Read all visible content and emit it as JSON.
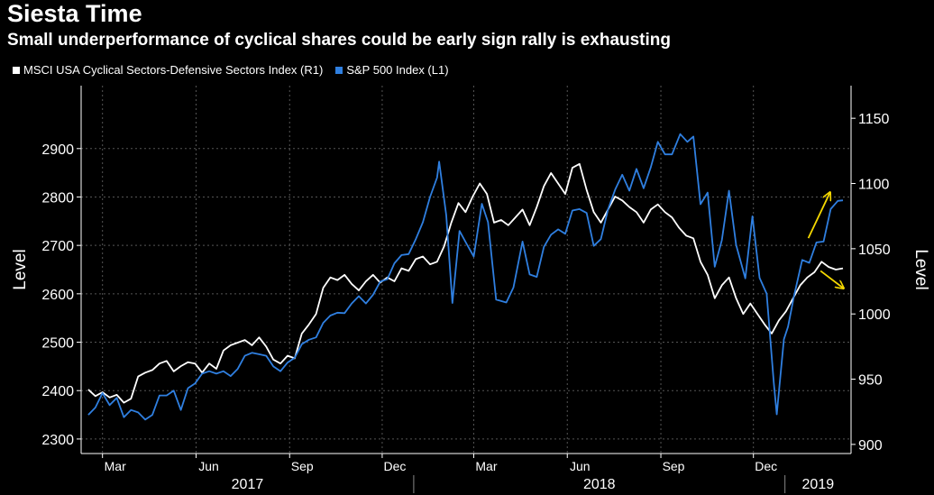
{
  "header": {
    "title": "Siesta Time",
    "subtitle": "Small underperformance of cyclical shares could be early sign rally is exhausting"
  },
  "colors": {
    "background": "#000000",
    "sp500": "#2f7fe0",
    "cyclical": "#ffffff",
    "arrow": "#f5d800",
    "grid": "#555555"
  },
  "chart_data": {
    "type": "line",
    "grid": true,
    "legend_placement": "top-left",
    "series": [
      {
        "name": "MSCI USA Cyclical Sectors-Defensive Sectors Index (R1)",
        "axis": "right",
        "color": "#ffffff",
        "points": [
          [
            "2017-02-15",
            942
          ],
          [
            "2017-02-22",
            937
          ],
          [
            "2017-03-01",
            940
          ],
          [
            "2017-03-08",
            936
          ],
          [
            "2017-03-15",
            938
          ],
          [
            "2017-03-22",
            932
          ],
          [
            "2017-03-29",
            935
          ],
          [
            "2017-04-05",
            952
          ],
          [
            "2017-04-12",
            955
          ],
          [
            "2017-04-19",
            957
          ],
          [
            "2017-04-26",
            962
          ],
          [
            "2017-05-03",
            964
          ],
          [
            "2017-05-10",
            956
          ],
          [
            "2017-05-17",
            960
          ],
          [
            "2017-05-24",
            963
          ],
          [
            "2017-05-31",
            962
          ],
          [
            "2017-06-07",
            955
          ],
          [
            "2017-06-14",
            962
          ],
          [
            "2017-06-21",
            958
          ],
          [
            "2017-06-28",
            972
          ],
          [
            "2017-07-05",
            976
          ],
          [
            "2017-07-12",
            978
          ],
          [
            "2017-07-19",
            980
          ],
          [
            "2017-07-26",
            976
          ],
          [
            "2017-08-02",
            982
          ],
          [
            "2017-08-09",
            975
          ],
          [
            "2017-08-16",
            965
          ],
          [
            "2017-08-23",
            962
          ],
          [
            "2017-08-30",
            968
          ],
          [
            "2017-09-06",
            966
          ],
          [
            "2017-09-13",
            985
          ],
          [
            "2017-09-20",
            992
          ],
          [
            "2017-09-27",
            1000
          ],
          [
            "2017-10-04",
            1020
          ],
          [
            "2017-10-11",
            1028
          ],
          [
            "2017-10-18",
            1026
          ],
          [
            "2017-10-25",
            1030
          ],
          [
            "2017-11-01",
            1023
          ],
          [
            "2017-11-08",
            1018
          ],
          [
            "2017-11-15",
            1025
          ],
          [
            "2017-11-22",
            1030
          ],
          [
            "2017-11-29",
            1024
          ],
          [
            "2017-12-06",
            1028
          ],
          [
            "2017-12-13",
            1025
          ],
          [
            "2017-12-20",
            1035
          ],
          [
            "2017-12-27",
            1033
          ],
          [
            "2018-01-03",
            1042
          ],
          [
            "2018-01-10",
            1044
          ],
          [
            "2018-01-17",
            1038
          ],
          [
            "2018-01-24",
            1040
          ],
          [
            "2018-01-31",
            1052
          ],
          [
            "2018-02-07",
            1070
          ],
          [
            "2018-02-14",
            1085
          ],
          [
            "2018-02-21",
            1078
          ],
          [
            "2018-02-28",
            1090
          ],
          [
            "2018-03-07",
            1100
          ],
          [
            "2018-03-14",
            1092
          ],
          [
            "2018-03-21",
            1070
          ],
          [
            "2018-03-28",
            1072
          ],
          [
            "2018-04-04",
            1068
          ],
          [
            "2018-04-11",
            1074
          ],
          [
            "2018-04-18",
            1080
          ],
          [
            "2018-04-25",
            1068
          ],
          [
            "2018-05-02",
            1082
          ],
          [
            "2018-05-09",
            1098
          ],
          [
            "2018-05-16",
            1108
          ],
          [
            "2018-05-23",
            1100
          ],
          [
            "2018-05-30",
            1092
          ],
          [
            "2018-06-06",
            1112
          ],
          [
            "2018-06-13",
            1115
          ],
          [
            "2018-06-20",
            1095
          ],
          [
            "2018-06-27",
            1078
          ],
          [
            "2018-07-04",
            1070
          ],
          [
            "2018-07-11",
            1080
          ],
          [
            "2018-07-18",
            1090
          ],
          [
            "2018-07-25",
            1087
          ],
          [
            "2018-08-01",
            1082
          ],
          [
            "2018-08-08",
            1078
          ],
          [
            "2018-08-15",
            1070
          ],
          [
            "2018-08-22",
            1080
          ],
          [
            "2018-08-29",
            1084
          ],
          [
            "2018-09-05",
            1078
          ],
          [
            "2018-09-12",
            1074
          ],
          [
            "2018-09-19",
            1066
          ],
          [
            "2018-09-26",
            1060
          ],
          [
            "2018-10-03",
            1058
          ],
          [
            "2018-10-10",
            1040
          ],
          [
            "2018-10-17",
            1030
          ],
          [
            "2018-10-24",
            1012
          ],
          [
            "2018-10-31",
            1022
          ],
          [
            "2018-11-07",
            1028
          ],
          [
            "2018-11-14",
            1012
          ],
          [
            "2018-11-21",
            1000
          ],
          [
            "2018-11-28",
            1008
          ],
          [
            "2018-12-05",
            1000
          ],
          [
            "2018-12-12",
            992
          ],
          [
            "2018-12-19",
            985
          ],
          [
            "2018-12-26",
            995
          ],
          [
            "2019-01-02",
            1002
          ],
          [
            "2019-01-09",
            1012
          ],
          [
            "2019-01-16",
            1022
          ],
          [
            "2019-01-23",
            1028
          ],
          [
            "2019-01-30",
            1032
          ],
          [
            "2019-02-06",
            1040
          ],
          [
            "2019-02-13",
            1036
          ],
          [
            "2019-02-20",
            1034
          ],
          [
            "2019-02-27",
            1035
          ]
        ]
      },
      {
        "name": "S&P 500 Index (L1)",
        "axis": "left",
        "color": "#2f7fe0",
        "points": [
          [
            "2017-02-15",
            2350
          ],
          [
            "2017-02-22",
            2365
          ],
          [
            "2017-03-01",
            2395
          ],
          [
            "2017-03-08",
            2370
          ],
          [
            "2017-03-15",
            2385
          ],
          [
            "2017-03-22",
            2345
          ],
          [
            "2017-03-29",
            2360
          ],
          [
            "2017-04-05",
            2355
          ],
          [
            "2017-04-12",
            2340
          ],
          [
            "2017-04-19",
            2350
          ],
          [
            "2017-04-26",
            2390
          ],
          [
            "2017-05-03",
            2390
          ],
          [
            "2017-05-10",
            2400
          ],
          [
            "2017-05-17",
            2360
          ],
          [
            "2017-05-24",
            2405
          ],
          [
            "2017-05-31",
            2415
          ],
          [
            "2017-06-07",
            2435
          ],
          [
            "2017-06-14",
            2440
          ],
          [
            "2017-06-21",
            2435
          ],
          [
            "2017-06-28",
            2440
          ],
          [
            "2017-07-05",
            2430
          ],
          [
            "2017-07-12",
            2445
          ],
          [
            "2017-07-19",
            2472
          ],
          [
            "2017-07-26",
            2478
          ],
          [
            "2017-08-02",
            2475
          ],
          [
            "2017-08-09",
            2472
          ],
          [
            "2017-08-16",
            2450
          ],
          [
            "2017-08-23",
            2440
          ],
          [
            "2017-08-30",
            2458
          ],
          [
            "2017-09-06",
            2468
          ],
          [
            "2017-09-13",
            2496
          ],
          [
            "2017-09-20",
            2505
          ],
          [
            "2017-09-27",
            2510
          ],
          [
            "2017-10-04",
            2540
          ],
          [
            "2017-10-11",
            2555
          ],
          [
            "2017-10-18",
            2561
          ],
          [
            "2017-10-25",
            2560
          ],
          [
            "2017-11-01",
            2580
          ],
          [
            "2017-11-08",
            2595
          ],
          [
            "2017-11-15",
            2580
          ],
          [
            "2017-11-22",
            2598
          ],
          [
            "2017-11-29",
            2625
          ],
          [
            "2017-12-06",
            2630
          ],
          [
            "2017-12-13",
            2663
          ],
          [
            "2017-12-20",
            2680
          ],
          [
            "2017-12-27",
            2682
          ],
          [
            "2018-01-03",
            2713
          ],
          [
            "2018-01-10",
            2748
          ],
          [
            "2018-01-17",
            2800
          ],
          [
            "2018-01-24",
            2840
          ],
          [
            "2018-01-26",
            2873
          ],
          [
            "2018-02-02",
            2762
          ],
          [
            "2018-02-08",
            2581
          ],
          [
            "2018-02-15",
            2730
          ],
          [
            "2018-02-22",
            2703
          ],
          [
            "2018-03-01",
            2677
          ],
          [
            "2018-03-09",
            2786
          ],
          [
            "2018-03-15",
            2748
          ],
          [
            "2018-03-23",
            2588
          ],
          [
            "2018-04-02",
            2582
          ],
          [
            "2018-04-09",
            2613
          ],
          [
            "2018-04-18",
            2708
          ],
          [
            "2018-04-25",
            2640
          ],
          [
            "2018-05-02",
            2635
          ],
          [
            "2018-05-09",
            2697
          ],
          [
            "2018-05-16",
            2722
          ],
          [
            "2018-05-23",
            2733
          ],
          [
            "2018-05-30",
            2724
          ],
          [
            "2018-06-06",
            2772
          ],
          [
            "2018-06-13",
            2775
          ],
          [
            "2018-06-20",
            2767
          ],
          [
            "2018-06-27",
            2699
          ],
          [
            "2018-07-04",
            2713
          ],
          [
            "2018-07-11",
            2774
          ],
          [
            "2018-07-18",
            2815
          ],
          [
            "2018-07-25",
            2846
          ],
          [
            "2018-08-01",
            2813
          ],
          [
            "2018-08-08",
            2858
          ],
          [
            "2018-08-15",
            2818
          ],
          [
            "2018-08-22",
            2861
          ],
          [
            "2018-08-29",
            2914
          ],
          [
            "2018-09-05",
            2888
          ],
          [
            "2018-09-12",
            2888
          ],
          [
            "2018-09-20",
            2930
          ],
          [
            "2018-09-27",
            2914
          ],
          [
            "2018-10-03",
            2925
          ],
          [
            "2018-10-10",
            2785
          ],
          [
            "2018-10-17",
            2809
          ],
          [
            "2018-10-24",
            2656
          ],
          [
            "2018-10-31",
            2711
          ],
          [
            "2018-11-07",
            2813
          ],
          [
            "2018-11-14",
            2701
          ],
          [
            "2018-11-23",
            2632
          ],
          [
            "2018-11-30",
            2760
          ],
          [
            "2018-12-07",
            2633
          ],
          [
            "2018-12-14",
            2600
          ],
          [
            "2018-12-21",
            2416
          ],
          [
            "2018-12-24",
            2351
          ],
          [
            "2018-12-31",
            2506
          ],
          [
            "2019-01-04",
            2532
          ],
          [
            "2019-01-10",
            2596
          ],
          [
            "2019-01-18",
            2670
          ],
          [
            "2019-01-25",
            2664
          ],
          [
            "2019-02-01",
            2706
          ],
          [
            "2019-02-08",
            2708
          ],
          [
            "2019-02-15",
            2775
          ],
          [
            "2019-02-22",
            2792
          ],
          [
            "2019-02-27",
            2793
          ]
        ]
      }
    ],
    "y_left": {
      "min": 2270,
      "max": 3030,
      "ticks": [
        2300,
        2400,
        2500,
        2600,
        2700,
        2800,
        2900
      ],
      "label": "Level"
    },
    "y_right": {
      "min": 893,
      "max": 1175,
      "ticks": [
        900,
        950,
        1000,
        1050,
        1100,
        1150
      ],
      "label": "Level"
    },
    "x_range": [
      "2017-02-08",
      "2019-03-07"
    ],
    "month_ticks": [
      {
        "label": "Mar",
        "date": "2017-03-01"
      },
      {
        "label": "Jun",
        "date": "2017-06-01"
      },
      {
        "label": "Sep",
        "date": "2017-09-01"
      },
      {
        "label": "Dec",
        "date": "2017-12-01"
      },
      {
        "label": "Mar",
        "date": "2018-03-01"
      },
      {
        "label": "Jun",
        "date": "2018-06-01"
      },
      {
        "label": "Sep",
        "date": "2018-09-01"
      },
      {
        "label": "Dec",
        "date": "2018-12-01"
      }
    ],
    "years": [
      {
        "label": "2017",
        "start": "2017-02-08",
        "end": "2018-01-01"
      },
      {
        "label": "2018",
        "start": "2018-01-01",
        "end": "2019-01-01"
      },
      {
        "label": "2019",
        "start": "2019-01-01",
        "end": "2019-03-07"
      }
    ],
    "annotations": [
      {
        "type": "arrow",
        "color": "#f5d800",
        "axis": "left",
        "from": [
          "2019-01-24",
          2715
        ],
        "to": [
          "2019-02-14",
          2808
        ]
      },
      {
        "type": "arrow",
        "color": "#f5d800",
        "axis": "right",
        "from": [
          "2019-02-05",
          1033
        ],
        "to": [
          "2019-02-27",
          1020
        ]
      }
    ]
  }
}
